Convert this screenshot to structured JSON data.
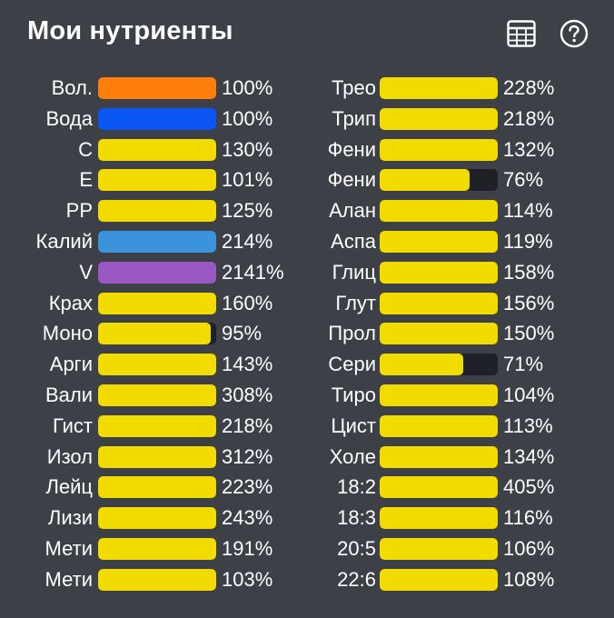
{
  "header": {
    "title": "Мои нутриенты",
    "table_icon": "table-icon",
    "help_icon": "help-icon"
  },
  "colors": {
    "background": "#3d4047",
    "default_fill": "#f2dc00",
    "track": "#1f2127"
  },
  "nutrients_left": [
    {
      "label": "Вол.",
      "pct": "100%",
      "value": 100,
      "color": "#ff7f0a"
    },
    {
      "label": "Вода",
      "pct": "100%",
      "value": 100,
      "color": "#0b55f2"
    },
    {
      "label": "С",
      "pct": "130%",
      "value": 130,
      "color": "#f2dc00"
    },
    {
      "label": "E",
      "pct": "101%",
      "value": 101,
      "color": "#f2dc00"
    },
    {
      "label": "PP",
      "pct": "125%",
      "value": 125,
      "color": "#f2dc00"
    },
    {
      "label": "Калий",
      "pct": "214%",
      "value": 214,
      "color": "#3b93dc"
    },
    {
      "label": "V",
      "pct": "2141%",
      "value": 2141,
      "color": "#9a58c2"
    },
    {
      "label": "Крах",
      "pct": "160%",
      "value": 160,
      "color": "#f2dc00"
    },
    {
      "label": "Моно",
      "pct": "95%",
      "value": 95,
      "color": "#f2dc00"
    },
    {
      "label": "Арги",
      "pct": "143%",
      "value": 143,
      "color": "#f2dc00"
    },
    {
      "label": "Вали",
      "pct": "308%",
      "value": 308,
      "color": "#f2dc00"
    },
    {
      "label": "Гист",
      "pct": "218%",
      "value": 218,
      "color": "#f2dc00"
    },
    {
      "label": "Изол",
      "pct": "312%",
      "value": 312,
      "color": "#f2dc00"
    },
    {
      "label": "Лейц",
      "pct": "223%",
      "value": 223,
      "color": "#f2dc00"
    },
    {
      "label": "Лизи",
      "pct": "243%",
      "value": 243,
      "color": "#f2dc00"
    },
    {
      "label": "Мети",
      "pct": "191%",
      "value": 191,
      "color": "#f2dc00"
    },
    {
      "label": "Мети",
      "pct": "103%",
      "value": 103,
      "color": "#f2dc00"
    }
  ],
  "nutrients_right": [
    {
      "label": "Трео",
      "pct": "228%",
      "value": 228,
      "color": "#f2dc00"
    },
    {
      "label": "Трип",
      "pct": "218%",
      "value": 218,
      "color": "#f2dc00"
    },
    {
      "label": "Фени",
      "pct": "132%",
      "value": 132,
      "color": "#f2dc00"
    },
    {
      "label": "Фени",
      "pct": "76%",
      "value": 76,
      "color": "#f2dc00"
    },
    {
      "label": "Алан",
      "pct": "114%",
      "value": 114,
      "color": "#f2dc00"
    },
    {
      "label": "Аспа",
      "pct": "119%",
      "value": 119,
      "color": "#f2dc00"
    },
    {
      "label": "Глиц",
      "pct": "158%",
      "value": 158,
      "color": "#f2dc00"
    },
    {
      "label": "Глут",
      "pct": "156%",
      "value": 156,
      "color": "#f2dc00"
    },
    {
      "label": "Прол",
      "pct": "150%",
      "value": 150,
      "color": "#f2dc00"
    },
    {
      "label": "Сери",
      "pct": "71%",
      "value": 71,
      "color": "#f2dc00"
    },
    {
      "label": "Тиро",
      "pct": "104%",
      "value": 104,
      "color": "#f2dc00"
    },
    {
      "label": "Цист",
      "pct": "113%",
      "value": 113,
      "color": "#f2dc00"
    },
    {
      "label": "Холе",
      "pct": "134%",
      "value": 134,
      "color": "#f2dc00"
    },
    {
      "label": "18:2",
      "pct": "405%",
      "value": 405,
      "color": "#f2dc00"
    },
    {
      "label": "18:3",
      "pct": "116%",
      "value": 116,
      "color": "#f2dc00"
    },
    {
      "label": "20:5",
      "pct": "106%",
      "value": 106,
      "color": "#f2dc00"
    },
    {
      "label": "22:6",
      "pct": "108%",
      "value": 108,
      "color": "#f2dc00"
    }
  ]
}
